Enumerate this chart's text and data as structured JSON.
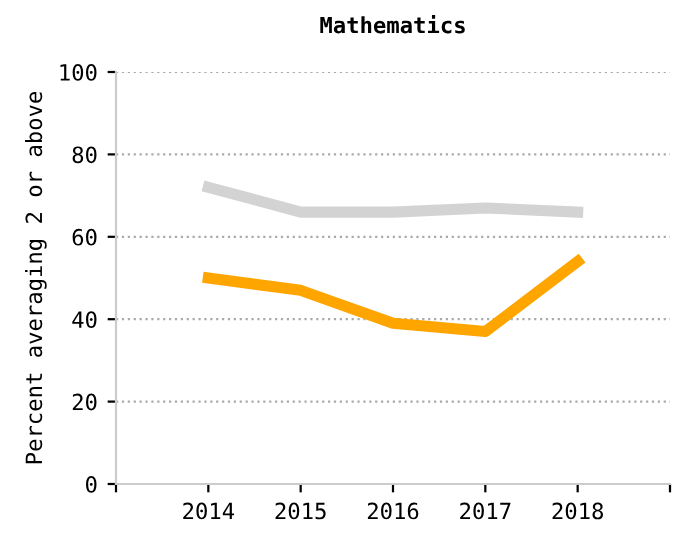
{
  "chart_data": {
    "type": "line",
    "title": "Mathematics",
    "ylabel": "Percent averaging 2 or above",
    "x": [
      2014,
      2015,
      2016,
      2017,
      2018
    ],
    "series": [
      {
        "color": "#d3d3d3",
        "values": [
          72,
          66,
          66,
          67,
          66
        ]
      },
      {
        "color": "#ffa500",
        "values": [
          50,
          47,
          39,
          37,
          54
        ]
      }
    ],
    "xlim": [
      2013,
      2019
    ],
    "xticks": [
      {
        "value": 2013,
        "label": null
      },
      2014,
      2015,
      2016,
      2017,
      2018,
      {
        "value": 2019,
        "label": null
      }
    ],
    "ylim": [
      0,
      100
    ],
    "yticks": [
      0,
      20,
      40,
      60,
      80,
      100
    ],
    "grid": "y",
    "marker": "none",
    "line_style": "solid"
  }
}
